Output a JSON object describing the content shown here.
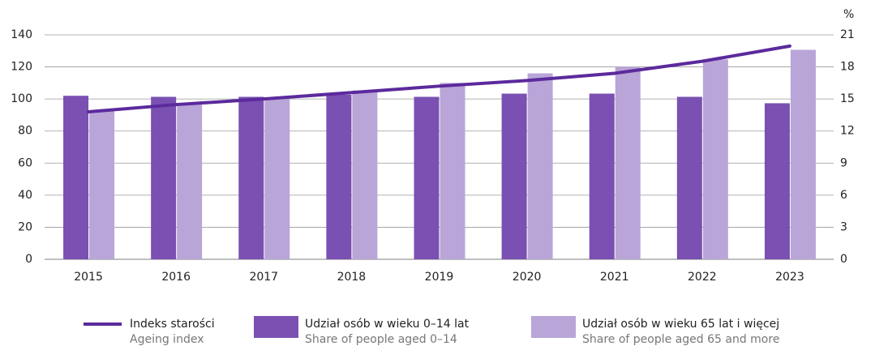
{
  "chart_data": {
    "type": "bar-line",
    "y2_unit": "%",
    "categories": [
      "2015",
      "2016",
      "2017",
      "2018",
      "2019",
      "2020",
      "2021",
      "2022",
      "2023"
    ],
    "series": [
      {
        "name": "Indeks starości",
        "name_en": "Ageing index",
        "type": "line",
        "color": "#5b2a9c",
        "axis": "y",
        "values": [
          92,
          96.5,
          100,
          104,
          108,
          111.5,
          116,
          123.5,
          133
        ]
      },
      {
        "name": "Udział osób w wieku 0–14 lat",
        "name_en": "Share of people aged 0–14",
        "type": "bar",
        "color": "#7a50b2",
        "axis": "y2",
        "values": [
          15.3,
          15.2,
          15.2,
          15.4,
          15.2,
          15.5,
          15.5,
          15.2,
          14.6
        ]
      },
      {
        "name": "Udział osób w wieku 65 lat i więcej",
        "name_en": "Share of people aged 65 and more",
        "type": "bar",
        "color": "#b9a5d7",
        "axis": "y2",
        "values": [
          13.9,
          14.5,
          15.1,
          15.8,
          16.5,
          17.4,
          18.0,
          18.7,
          19.6
        ]
      }
    ],
    "ylim": [
      0,
      140
    ],
    "yticks": [
      0,
      20,
      40,
      60,
      80,
      100,
      120,
      140
    ],
    "y2lim": [
      0,
      21
    ],
    "y2ticks": [
      0,
      3,
      6,
      9,
      12,
      15,
      18,
      21
    ],
    "grid": true
  }
}
